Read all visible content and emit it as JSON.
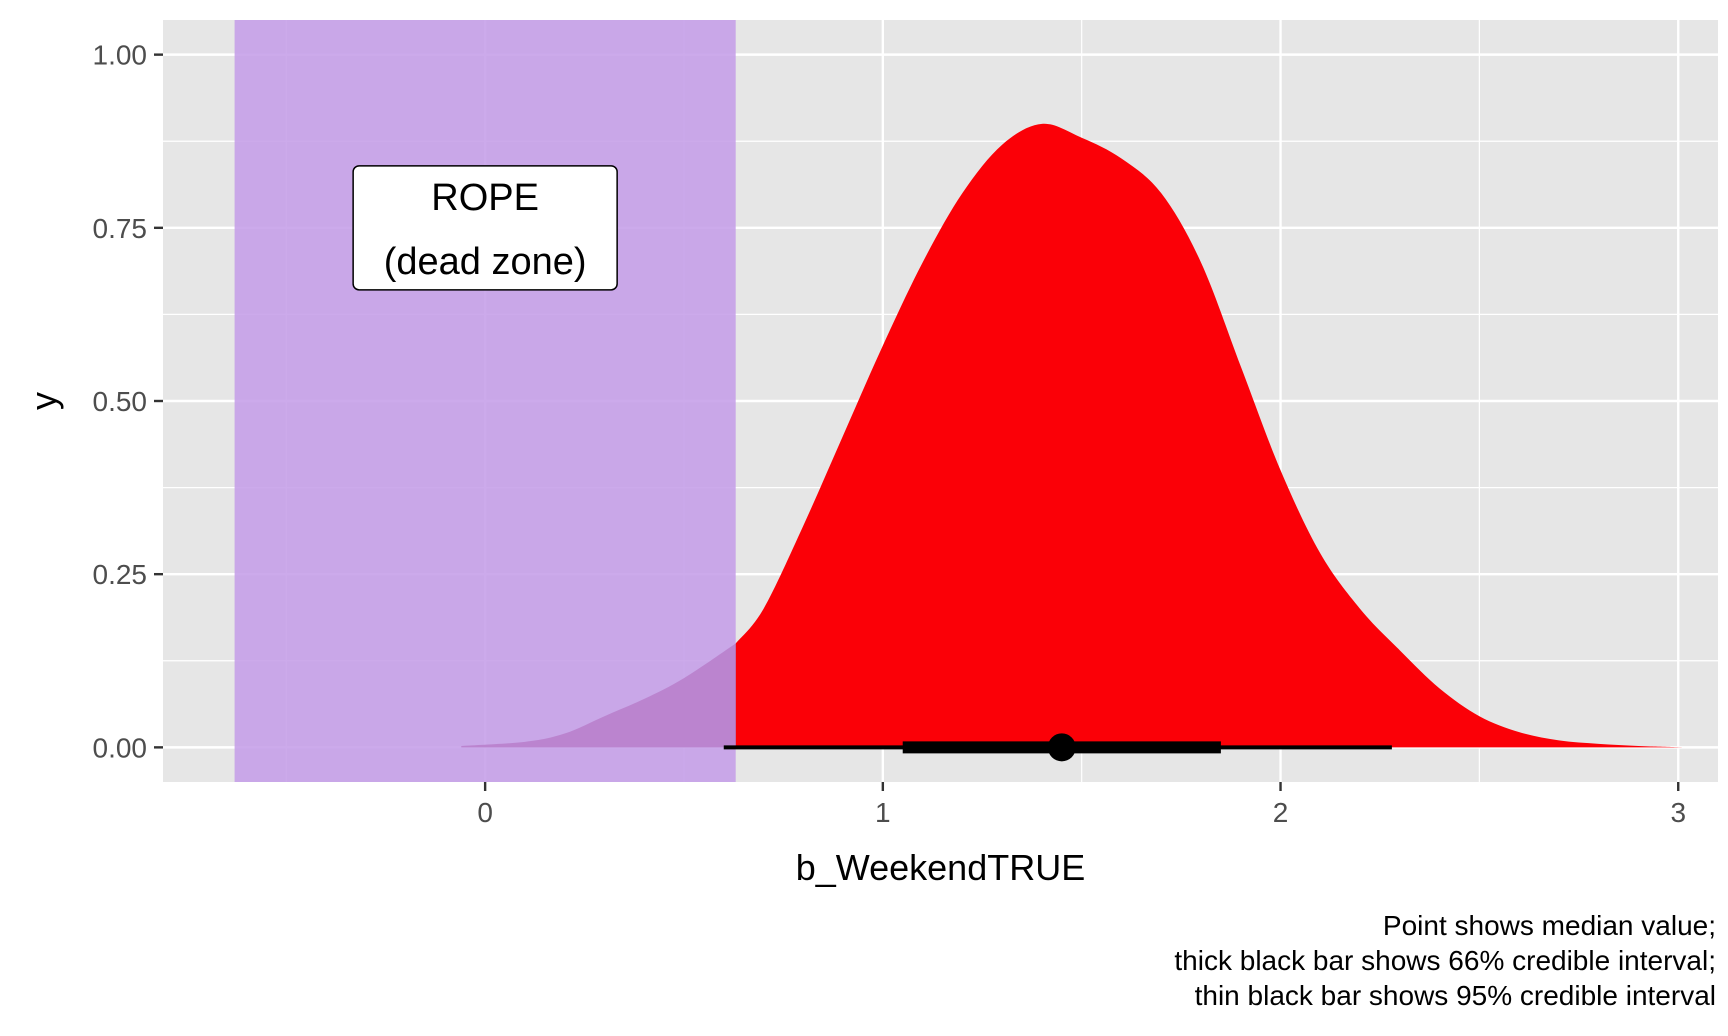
{
  "chart_data": {
    "type": "area",
    "title": "",
    "xlabel": "b_WeekendTRUE",
    "ylabel": "y",
    "xlim": [
      -0.81,
      3.1
    ],
    "ylim": [
      -0.05,
      1.05
    ],
    "x_ticks": [
      0,
      1,
      2,
      3
    ],
    "x_minor": [
      -0.5,
      0.5,
      1.5,
      2.5
    ],
    "y_ticks": [
      0.0,
      0.25,
      0.5,
      0.75,
      1.0
    ],
    "y_tick_labels": [
      "0.00",
      "0.25",
      "0.50",
      "0.75",
      "1.00"
    ],
    "y_minor": [
      0.125,
      0.375,
      0.625,
      0.875
    ],
    "grid": true,
    "rope": {
      "xmin": -0.63,
      "xmax": 0.63,
      "color": "#c39be8",
      "label_lines": [
        "ROPE",
        "(dead zone)"
      ],
      "label_x": 0.0,
      "label_y": 0.75
    },
    "density": {
      "x": [
        -0.06,
        0.1,
        0.2,
        0.3,
        0.4,
        0.5,
        0.63,
        0.7,
        0.8,
        0.9,
        1.0,
        1.1,
        1.2,
        1.3,
        1.4,
        1.5,
        1.6,
        1.7,
        1.8,
        1.9,
        2.0,
        2.1,
        2.2,
        2.3,
        2.4,
        2.5,
        2.6,
        2.7,
        2.8,
        2.9,
        3.01
      ],
      "y": [
        0.002,
        0.008,
        0.02,
        0.045,
        0.07,
        0.1,
        0.15,
        0.2,
        0.32,
        0.45,
        0.58,
        0.7,
        0.8,
        0.87,
        0.9,
        0.88,
        0.85,
        0.8,
        0.7,
        0.55,
        0.4,
        0.28,
        0.2,
        0.14,
        0.085,
        0.045,
        0.022,
        0.01,
        0.005,
        0.002,
        0.0
      ],
      "fill_outside_rope": "#fb0007",
      "fill_inside_rope": "#8e0047"
    },
    "summary": {
      "median": 1.45,
      "ci66": [
        1.05,
        1.85
      ],
      "ci95": [
        0.6,
        2.28
      ]
    },
    "caption_lines": [
      "Point shows median value;",
      "thick black bar shows 66% credible interval;",
      "thin black bar shows 95% credible interval"
    ],
    "colors": {
      "panel": "#e6e6e6",
      "grid": "#ffffff",
      "axis_text": "#4d4d4d",
      "text": "#000000"
    }
  }
}
